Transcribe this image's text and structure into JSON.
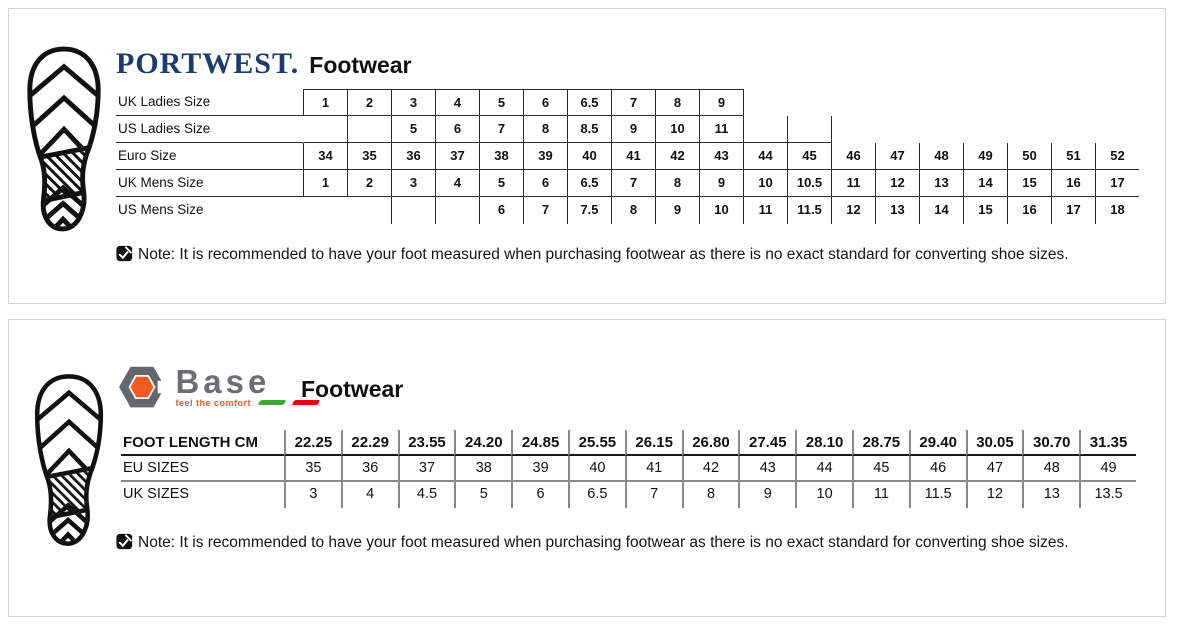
{
  "portwest": {
    "brand": "PORTWEST.",
    "title": "Footwear",
    "table": {
      "rows": [
        {
          "label": "UK Ladies Size",
          "values": [
            "1",
            "2",
            "3",
            "4",
            "5",
            "6",
            "6.5",
            "7",
            "8",
            "9",
            "",
            "",
            "",
            "",
            "",
            "",
            "",
            "",
            ""
          ]
        },
        {
          "label": "US Ladies Size",
          "values": [
            "",
            "",
            "5",
            "6",
            "7",
            "8",
            "8.5",
            "9",
            "10",
            "11",
            "",
            "",
            "",
            "",
            "",
            "",
            "",
            "",
            ""
          ]
        },
        {
          "label": "Euro Size",
          "values": [
            "34",
            "35",
            "36",
            "37",
            "38",
            "39",
            "40",
            "41",
            "42",
            "43",
            "44",
            "45",
            "46",
            "47",
            "48",
            "49",
            "50",
            "51",
            "52"
          ]
        },
        {
          "label": "UK Mens Size",
          "values": [
            "1",
            "2",
            "3",
            "4",
            "5",
            "6",
            "6.5",
            "7",
            "8",
            "9",
            "10",
            "10.5",
            "11",
            "12",
            "13",
            "14",
            "15",
            "16",
            "17"
          ]
        },
        {
          "label": "US Mens Size",
          "values": [
            "",
            "",
            "",
            "",
            "6",
            "7",
            "7.5",
            "8",
            "9",
            "10",
            "11",
            "11.5",
            "12",
            "13",
            "14",
            "15",
            "16",
            "17",
            "18"
          ]
        }
      ]
    },
    "note": "Note: It is recommended to have your foot measured when purchasing footwear as there is no exact standard for converting shoe sizes."
  },
  "base": {
    "brand": "Base",
    "tagline": "feel the comfort",
    "title": "Footwear",
    "table": {
      "header": {
        "label": "FOOT LENGTH CM",
        "values": [
          "22.25",
          "22.29",
          "23.55",
          "24.20",
          "24.85",
          "25.55",
          "26.15",
          "26.80",
          "27.45",
          "28.10",
          "28.75",
          "29.40",
          "30.05",
          "30.70",
          "31.35"
        ]
      },
      "rows": [
        {
          "label": "EU SIZES",
          "values": [
            "35",
            "36",
            "37",
            "38",
            "39",
            "40",
            "41",
            "42",
            "43",
            "44",
            "45",
            "46",
            "47",
            "48",
            "49"
          ]
        },
        {
          "label": "UK SIZES",
          "values": [
            "3",
            "4",
            "4.5",
            "5",
            "6",
            "6.5",
            "7",
            "8",
            "9",
            "10",
            "11",
            "11.5",
            "12",
            "13",
            "13.5"
          ]
        }
      ]
    },
    "note": "Note: It is recommended to have your foot measured when purchasing footwear as there is no exact standard for converting shoe sizes."
  },
  "icons": {
    "boot": "boot-sole-print-icon",
    "note": "checked-note-icon"
  },
  "colors": {
    "portwest_navy": "#1d3c6e",
    "base_gray": "#6d6e71",
    "base_orange": "#f15a22",
    "flag_green": "#3aaa35",
    "flag_red": "#e30613",
    "table_line_dark": "#2b2b2b",
    "table_line_gray": "#8a8a8a",
    "panel_border": "#d2d2d2"
  }
}
